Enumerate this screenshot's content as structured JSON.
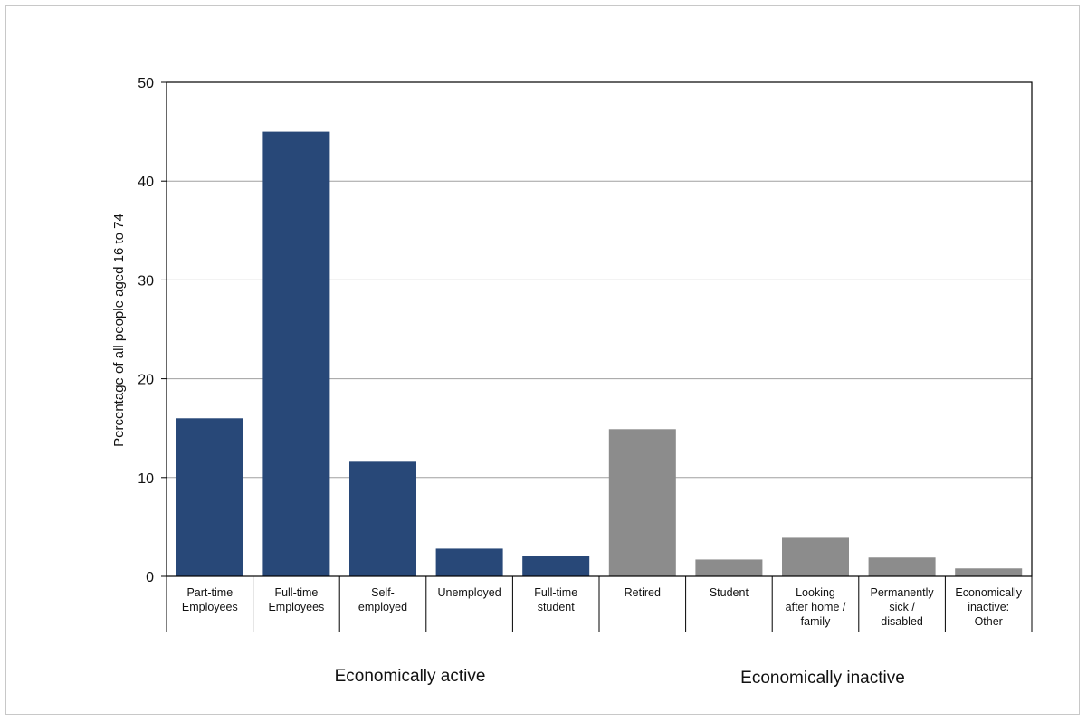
{
  "chart_data": {
    "type": "bar",
    "title": "",
    "xlabel": "",
    "ylabel": "Percentage of all people aged 16 to 74",
    "ylim": [
      0,
      50
    ],
    "yticks": [
      0,
      10,
      20,
      30,
      40,
      50
    ],
    "grid": true,
    "categories": [
      [
        "Part-time",
        "Employees"
      ],
      [
        "Full-time",
        "Employees"
      ],
      [
        "Self-",
        "employed"
      ],
      [
        "Unemployed"
      ],
      [
        "Full-time",
        "student"
      ],
      [
        "Retired"
      ],
      [
        "Student"
      ],
      [
        "Looking",
        "after home /",
        "family"
      ],
      [
        "Permanently",
        "sick /",
        "disabled"
      ],
      [
        "Economically",
        "inactive:",
        "Other"
      ]
    ],
    "values": [
      16,
      45,
      11.6,
      2.8,
      2.1,
      14.9,
      1.7,
      3.9,
      1.9,
      0.8
    ],
    "groups": [
      {
        "label": "Economically active",
        "start": 0,
        "end": 4,
        "color": "#284878"
      },
      {
        "label": "Economically inactive",
        "start": 5,
        "end": 9,
        "color": "#8c8c8c"
      }
    ]
  }
}
